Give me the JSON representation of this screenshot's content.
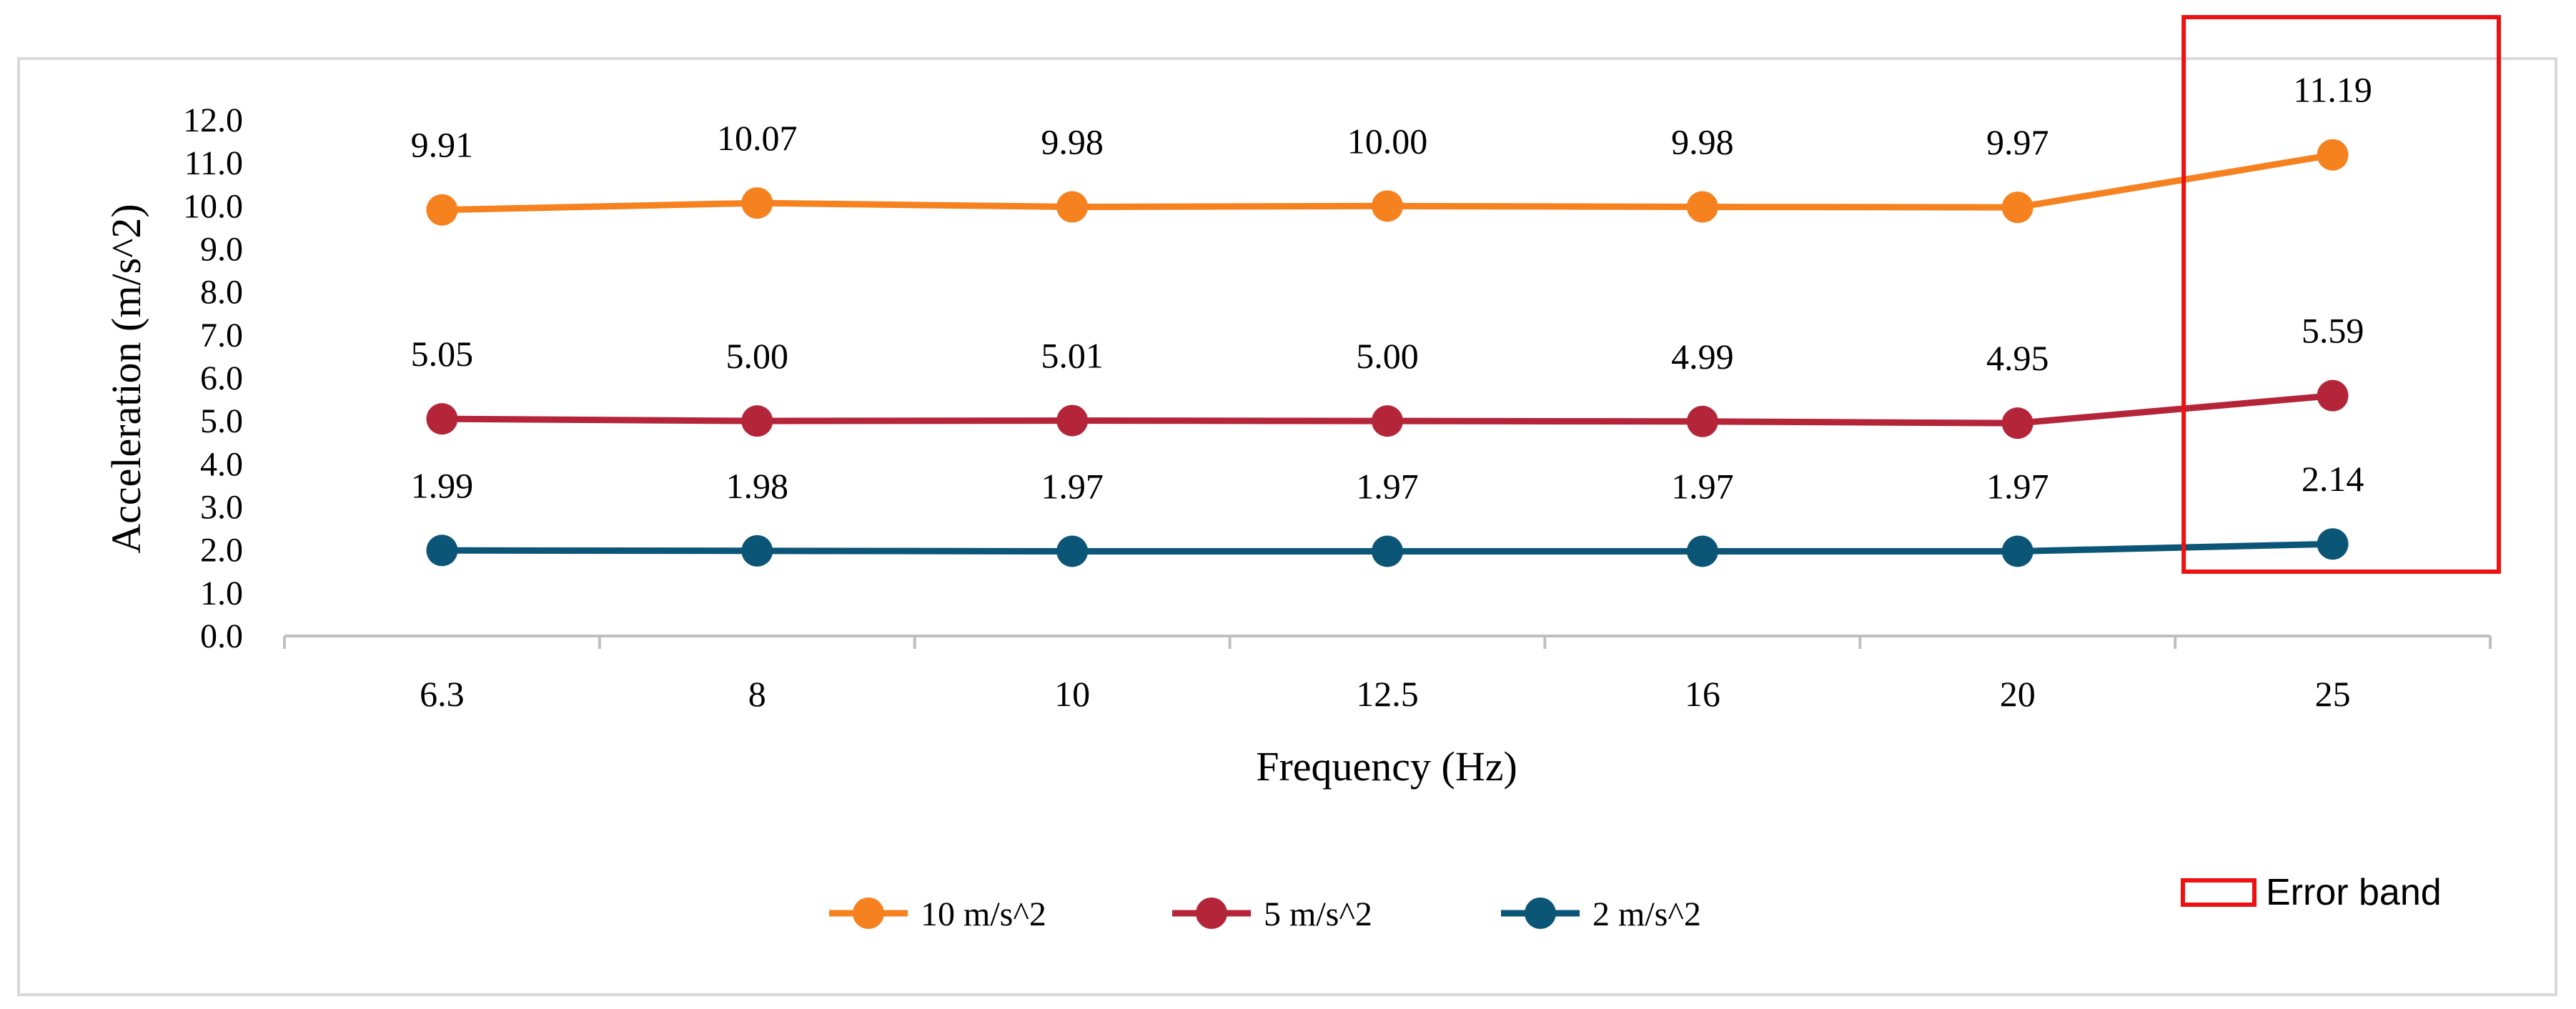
{
  "chart_data": {
    "type": "line",
    "title": "",
    "xlabel": "Frequency (Hz)",
    "ylabel": "Acceleration (m/s^2)",
    "categories": [
      "6.3",
      "8",
      "10",
      "12.5",
      "16",
      "20",
      "25"
    ],
    "ylim": [
      0,
      12
    ],
    "y_ticks": [
      "0.0",
      "1.0",
      "2.0",
      "3.0",
      "4.0",
      "5.0",
      "6.0",
      "7.0",
      "8.0",
      "9.0",
      "10.0",
      "11.0",
      "12.0"
    ],
    "grid": false,
    "legend_position": "bottom",
    "series": [
      {
        "name": "10 m/s^2",
        "color": "#F5821F",
        "values": [
          9.91,
          10.07,
          9.98,
          10.0,
          9.98,
          9.97,
          11.19
        ],
        "labels": [
          "9.91",
          "10.07",
          "9.98",
          "10.00",
          "9.98",
          "9.97",
          "11.19"
        ]
      },
      {
        "name": "5 m/s^2",
        "color": "#B5253A",
        "values": [
          5.05,
          5.0,
          5.01,
          5.0,
          4.99,
          4.95,
          5.59
        ],
        "labels": [
          "5.05",
          "5.00",
          "5.01",
          "5.00",
          "4.99",
          "4.95",
          "5.59"
        ]
      },
      {
        "name": "2 m/s^2",
        "color": "#0B5577",
        "values": [
          1.99,
          1.98,
          1.97,
          1.97,
          1.97,
          1.97,
          2.14
        ],
        "labels": [
          "1.99",
          "1.98",
          "1.97",
          "1.97",
          "1.97",
          "1.97",
          "2.14"
        ]
      }
    ],
    "annotations": [
      {
        "type": "highlight-box",
        "label": "Error band",
        "color": "#EE1111",
        "category": "25"
      }
    ]
  }
}
